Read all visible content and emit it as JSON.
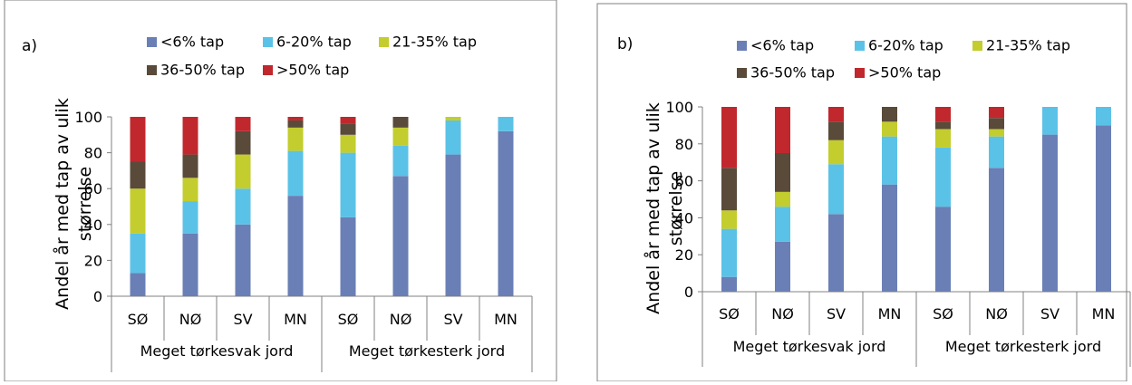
{
  "colors": {
    "lt6": "#6a7fb5",
    "p6_20": "#5bc2e7",
    "p21_35": "#c3cd2d",
    "p36_50": "#5a4a3a",
    "gt50": "#c0282e",
    "frame": "#7f7f7f"
  },
  "chart_data": [
    {
      "type": "bar",
      "stacked": true,
      "panel_label": "a)",
      "ylabel": "Andel år med tap av ulik størrelse",
      "ylabel_lines": [
        "Andel år med tap av ulik",
        "størrelse"
      ],
      "ylim": [
        0,
        100
      ],
      "yticks": [
        "0",
        "20",
        "40",
        "60",
        "80",
        "100"
      ],
      "legend_position": "top",
      "categories": [
        "SØ",
        "NØ",
        "SV",
        "MN",
        "SØ",
        "NØ",
        "SV",
        "MN"
      ],
      "groups": [
        "Meget tørkesvak jord",
        "Meget tørkesterk jord"
      ],
      "series": [
        {
          "name": "<6% tap",
          "values": [
            13,
            35,
            40,
            56,
            44,
            67,
            79,
            92
          ]
        },
        {
          "name": "6-20% tap",
          "values": [
            22,
            18,
            20,
            25,
            36,
            17,
            19,
            8
          ]
        },
        {
          "name": "21-35% tap",
          "values": [
            25,
            13,
            19,
            13,
            10,
            10,
            2,
            0
          ]
        },
        {
          "name": "36-50% tap",
          "values": [
            15,
            13,
            13,
            4,
            6,
            6,
            0,
            0
          ]
        },
        {
          "name": ">50% tap",
          "values": [
            25,
            21,
            8,
            2,
            4,
            0,
            0,
            0
          ]
        }
      ]
    },
    {
      "type": "bar",
      "stacked": true,
      "panel_label": "b)",
      "ylabel": "Andel år med tap av ulik størrelse",
      "ylabel_lines": [
        "Andel år med tap av ulik",
        "størrelse"
      ],
      "ylim": [
        0,
        100
      ],
      "yticks": [
        "0",
        "20",
        "40",
        "60",
        "80",
        "100"
      ],
      "legend_position": "top",
      "categories": [
        "SØ",
        "NØ",
        "SV",
        "MN",
        "SØ",
        "NØ",
        "SV",
        "MN"
      ],
      "groups": [
        "Meget tørkesvak jord",
        "Meget tørkesterk jord"
      ],
      "series": [
        {
          "name": "<6% tap",
          "values": [
            8,
            27,
            42,
            58,
            46,
            67,
            85,
            90
          ]
        },
        {
          "name": "6-20% tap",
          "values": [
            26,
            19,
            27,
            26,
            32,
            17,
            15,
            10
          ]
        },
        {
          "name": "21-35% tap",
          "values": [
            10,
            8,
            13,
            8,
            10,
            4,
            0,
            0
          ]
        },
        {
          "name": "36-50% tap",
          "values": [
            23,
            21,
            10,
            8,
            4,
            6,
            0,
            0
          ]
        },
        {
          "name": ">50% tap",
          "values": [
            33,
            25,
            8,
            0,
            8,
            6,
            0,
            0
          ]
        }
      ]
    }
  ]
}
